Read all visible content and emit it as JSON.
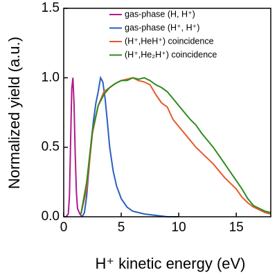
{
  "chart_data": {
    "type": "line",
    "xlabel": "H⁺ kinetic energy (eV)",
    "ylabel": "Normalized yield (a.u.)",
    "xlim": [
      0,
      18
    ],
    "xticks": [
      0,
      5,
      10,
      15
    ],
    "ylim": [
      0,
      1.5
    ],
    "yticks": [
      {
        "value": 0,
        "label": "0.0"
      },
      {
        "value": 0.5,
        "label": "0.5"
      },
      {
        "value": 1,
        "label": "1.0"
      },
      {
        "value": 1.5,
        "label": "1.5"
      }
    ],
    "legend": "upper right",
    "series": [
      {
        "name": "gas-phase (H, H⁺)",
        "color": "#b0198a",
        "x": [
          0.2,
          0.4,
          0.5,
          0.6,
          0.7,
          0.8,
          0.9,
          1.0,
          1.1,
          1.2,
          1.4,
          1.6
        ],
        "values": [
          0,
          0.02,
          0.15,
          0.55,
          0.92,
          1.0,
          0.8,
          0.45,
          0.18,
          0.06,
          0.02,
          0
        ]
      },
      {
        "name": "gas-phase (H⁺, H⁺)",
        "color": "#2a5fbf",
        "x": [
          1.6,
          1.8,
          2.0,
          2.2,
          2.4,
          2.6,
          2.8,
          3.0,
          3.2,
          3.4,
          3.6,
          3.8,
          4.0,
          4.3,
          4.6,
          5,
          5.5,
          6,
          7,
          8,
          9,
          10
        ],
        "values": [
          0,
          0.03,
          0.15,
          0.35,
          0.55,
          0.7,
          0.82,
          0.9,
          1.0,
          0.97,
          0.85,
          0.68,
          0.5,
          0.33,
          0.22,
          0.13,
          0.07,
          0.04,
          0.02,
          0.01,
          0,
          0
        ]
      },
      {
        "name": "(H⁺,HeH⁺) coincidence",
        "color": "#e8572a",
        "x": [
          1.5,
          2,
          2.5,
          3,
          3.5,
          4,
          4.5,
          5,
          5.5,
          6,
          6.5,
          7,
          7.5,
          8,
          8.5,
          9,
          9.5,
          10,
          10.5,
          11,
          11.5,
          12,
          12.5,
          13,
          13.5,
          14,
          14.5,
          15,
          15.5,
          16,
          16.5,
          17,
          17.5,
          18
        ],
        "values": [
          0.02,
          0.2,
          0.6,
          0.8,
          0.9,
          0.93,
          0.96,
          0.98,
          0.99,
          1.0,
          0.98,
          0.97,
          0.95,
          0.88,
          0.82,
          0.79,
          0.7,
          0.65,
          0.6,
          0.55,
          0.5,
          0.46,
          0.42,
          0.38,
          0.33,
          0.28,
          0.24,
          0.2,
          0.14,
          0.1,
          0.07,
          0.05,
          0.03,
          0.02
        ]
      },
      {
        "name": "(H⁺,He₂H⁺) coincidence",
        "color": "#2e8b1e",
        "x": [
          1.5,
          2,
          2.5,
          3,
          3.5,
          4,
          4.5,
          5,
          5.5,
          6,
          6.5,
          7,
          7.5,
          8,
          8.5,
          9,
          9.5,
          10,
          10.5,
          11,
          11.5,
          12,
          12.5,
          13,
          13.5,
          14,
          14.5,
          15,
          15.5,
          16,
          16.5,
          17,
          17.5,
          18
        ],
        "values": [
          0.02,
          0.25,
          0.62,
          0.8,
          0.88,
          0.93,
          0.96,
          0.98,
          0.98,
          1.0,
          0.99,
          1.0,
          0.98,
          0.95,
          0.93,
          0.9,
          0.85,
          0.8,
          0.75,
          0.7,
          0.66,
          0.6,
          0.55,
          0.5,
          0.44,
          0.38,
          0.32,
          0.26,
          0.2,
          0.13,
          0.08,
          0.06,
          0.04,
          0.03
        ]
      }
    ]
  }
}
